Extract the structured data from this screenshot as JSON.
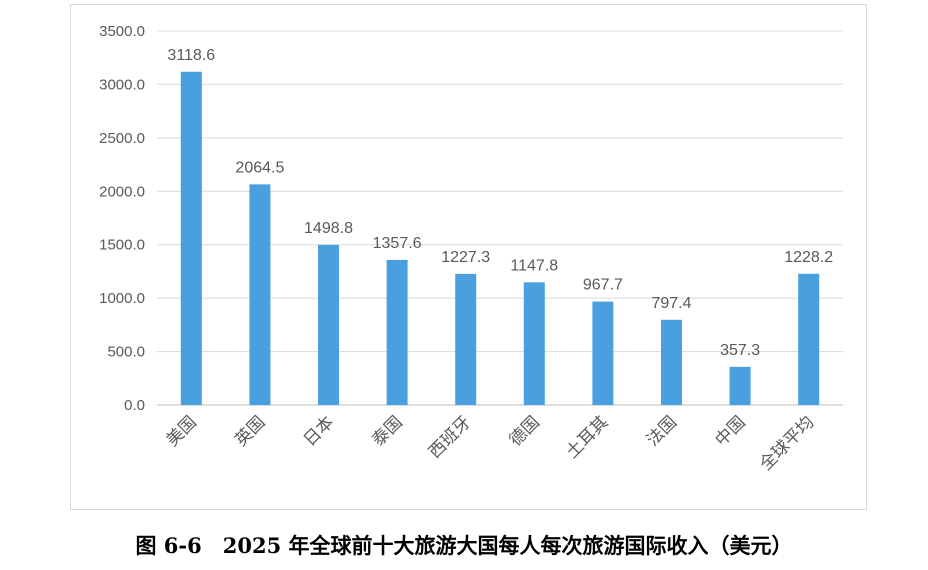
{
  "chart_data": {
    "type": "bar",
    "categories": [
      "美国",
      "英国",
      "日本",
      "泰国",
      "西班牙",
      "德国",
      "土耳其",
      "法国",
      "中国",
      "全球平均"
    ],
    "values": [
      3118.6,
      2064.5,
      1498.8,
      1357.6,
      1227.3,
      1147.8,
      967.7,
      797.4,
      357.3,
      1228.2
    ],
    "data_labels": [
      "3118.6",
      "2064.5",
      "1498.8",
      "1357.6",
      "1227.3",
      "1147.8",
      "967.7",
      "797.4",
      "357.3",
      "1228.2"
    ],
    "y_ticks": [
      "0.0",
      "500.0",
      "1000.0",
      "1500.0",
      "2000.0",
      "2500.0",
      "3000.0",
      "3500.0"
    ],
    "ylim": [
      0,
      3500
    ],
    "grid": true,
    "bar_color": "#4a9fdf",
    "legend": "none"
  },
  "caption": "图 6-6　2025 年全球前十大旅游大国每人每次旅游国际收入（美元）"
}
